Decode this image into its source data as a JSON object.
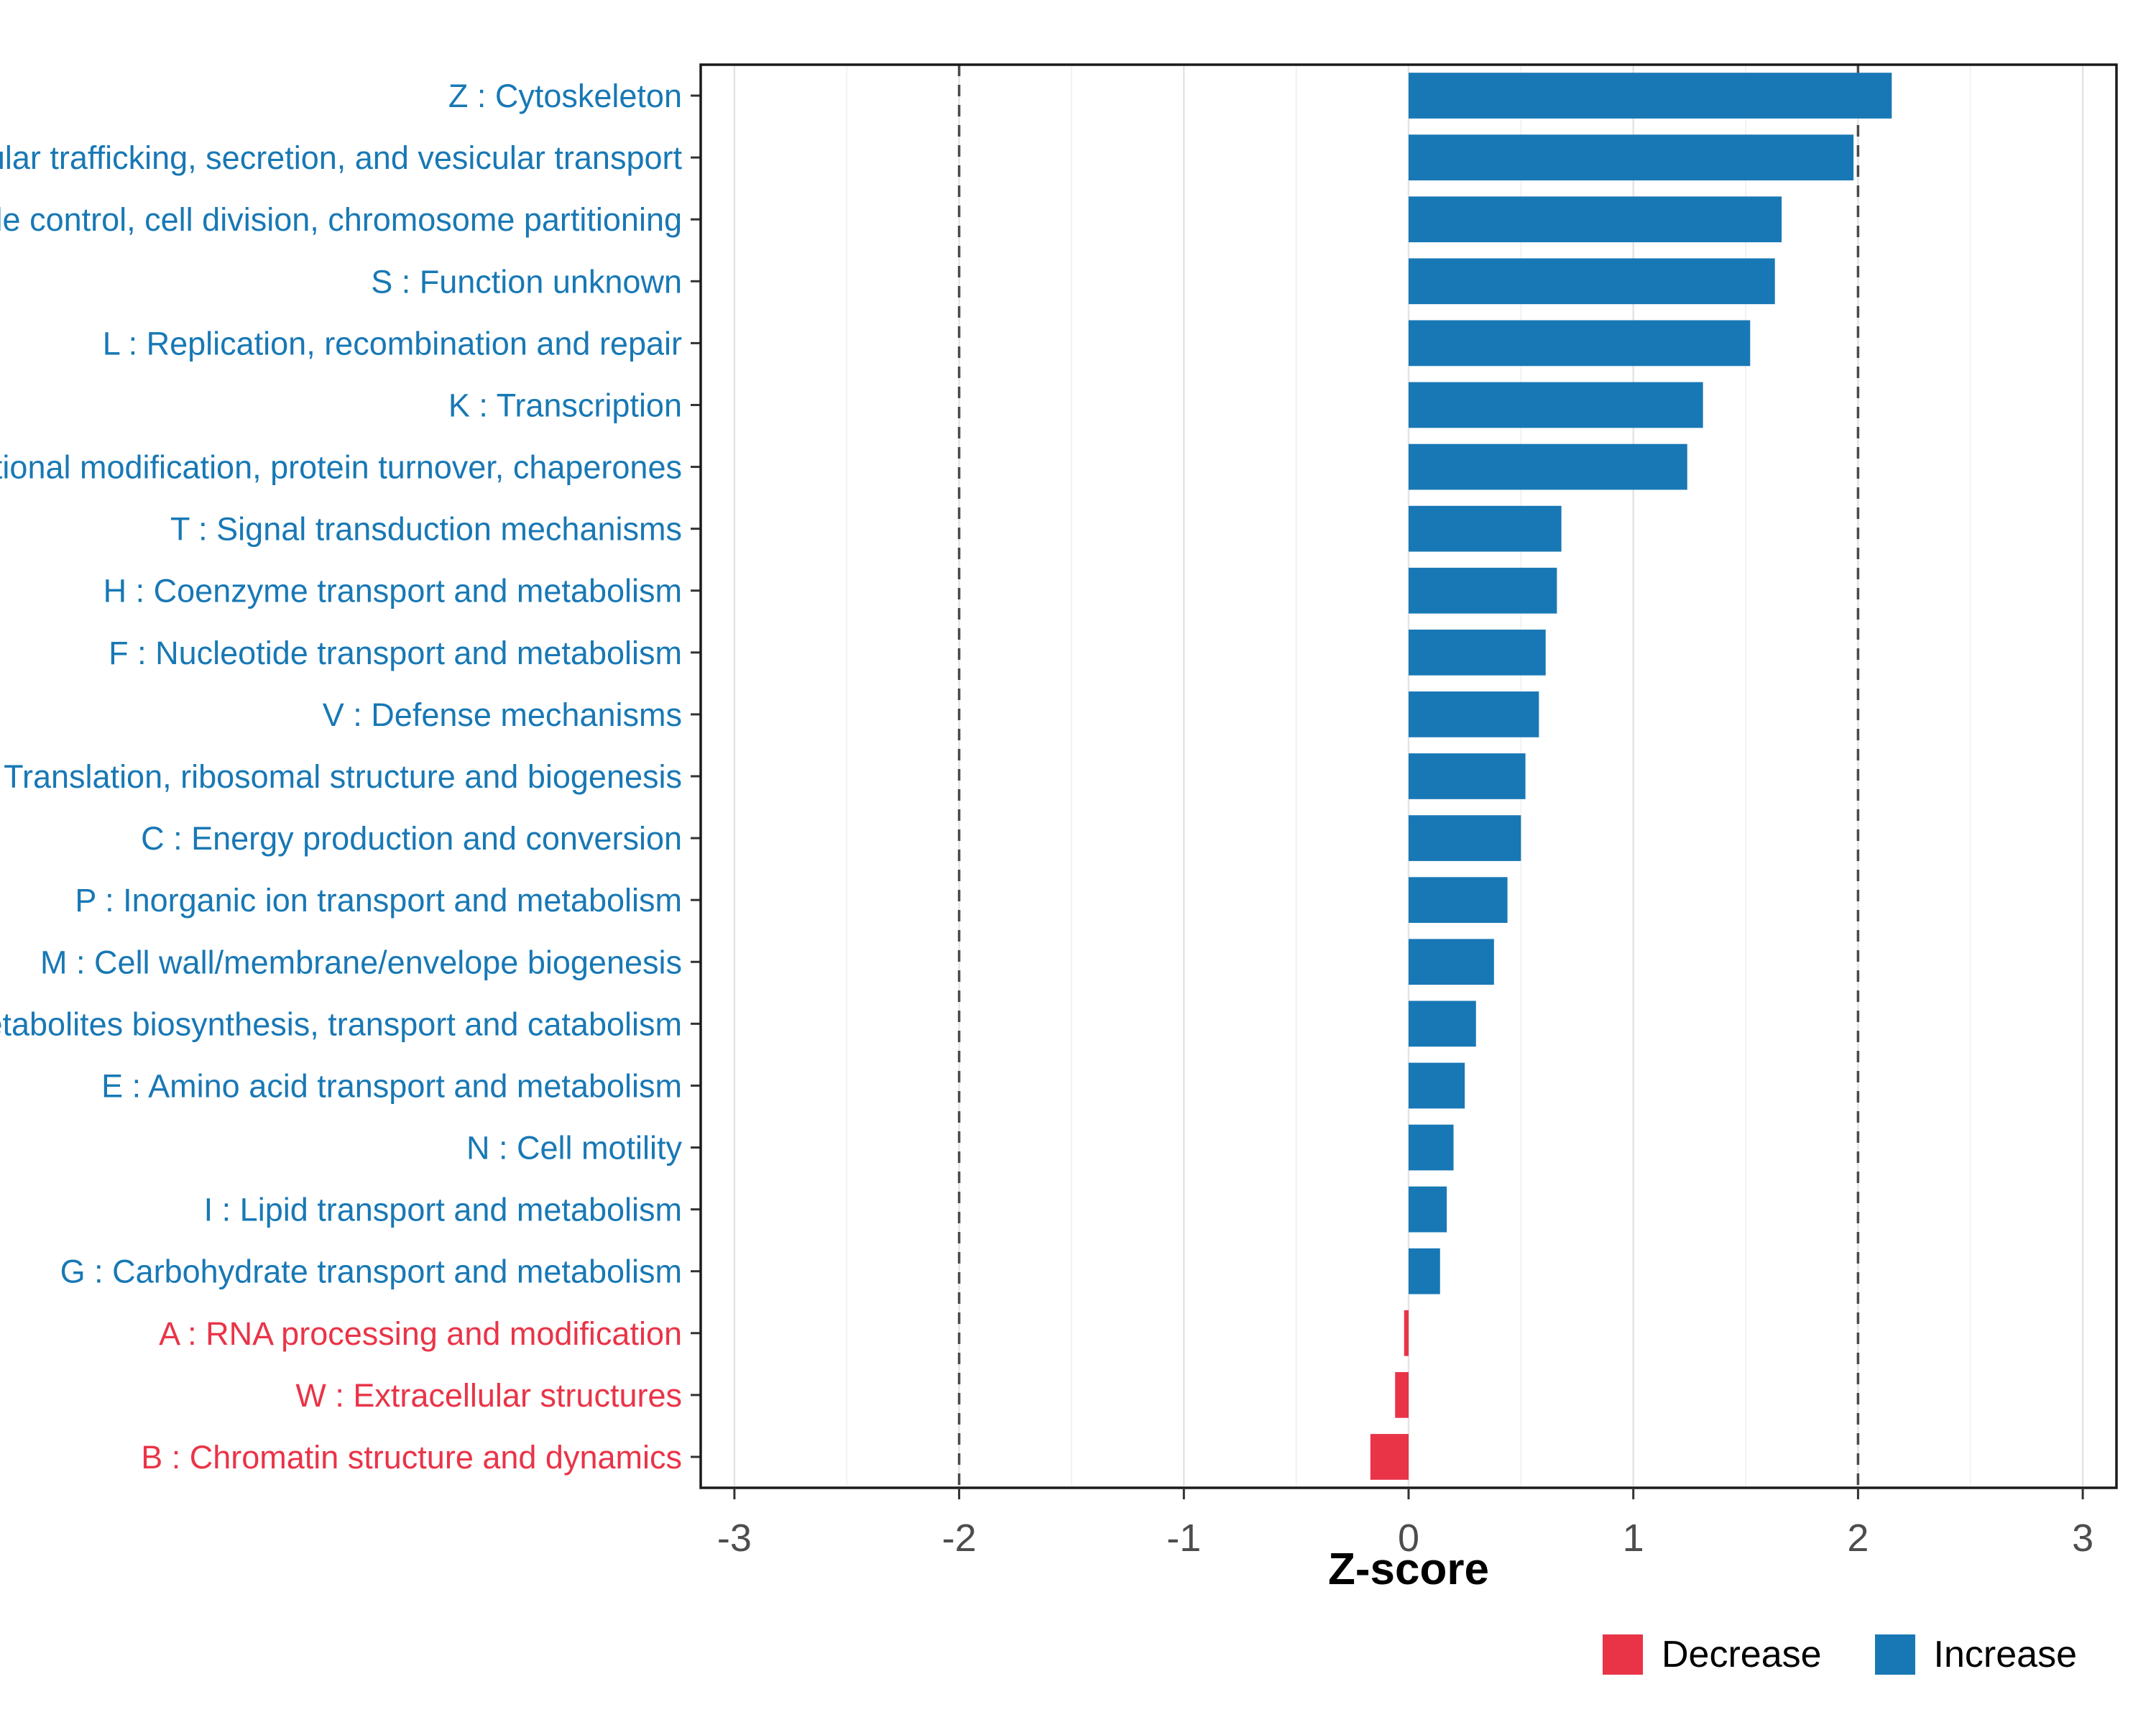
{
  "chart_data": {
    "type": "bar",
    "orientation": "horizontal",
    "title": "",
    "xlabel": "Z-score",
    "xlim": [
      -3.15,
      3.15
    ],
    "x_ticks": [
      -3,
      -2,
      -1,
      0,
      1,
      2,
      3
    ],
    "x_tick_labels": [
      "-3",
      "-2",
      "-1",
      "0",
      "1",
      "2",
      "3"
    ],
    "reference_lines": [
      -2,
      2
    ],
    "grid": true,
    "legend_position": "bottom-right",
    "categories": [
      "Z : Cytoskeleton",
      "U : Intracellular trafficking, secretion, and vesicular transport",
      "D : Cell cycle control, cell division, chromosome partitioning",
      "S : Function unknown",
      "L : Replication, recombination and repair",
      "K : Transcription",
      "O : Posttranslational modification, protein turnover, chaperones",
      "T : Signal transduction mechanisms",
      "H : Coenzyme transport and metabolism",
      "F : Nucleotide transport and metabolism",
      "V : Defense mechanisms",
      "J : Translation, ribosomal structure and biogenesis",
      "C : Energy production and conversion",
      "P : Inorganic ion transport and metabolism",
      "M : Cell wall/membrane/envelope biogenesis",
      "Q : Secondary metabolites biosynthesis, transport and catabolism",
      "E : Amino acid transport and metabolism",
      "N : Cell motility",
      "I : Lipid transport and metabolism",
      "G : Carbohydrate transport and metabolism",
      "A : RNA processing and modification",
      "W : Extracellular structures",
      "B : Chromatin structure and dynamics"
    ],
    "values": [
      2.15,
      1.98,
      1.66,
      1.63,
      1.52,
      1.31,
      1.24,
      0.68,
      0.66,
      0.61,
      0.58,
      0.52,
      0.5,
      0.44,
      0.38,
      0.3,
      0.25,
      0.2,
      0.17,
      0.14,
      -0.02,
      -0.06,
      -0.17
    ],
    "groups": [
      "increase",
      "increase",
      "increase",
      "increase",
      "increase",
      "increase",
      "increase",
      "increase",
      "increase",
      "increase",
      "increase",
      "increase",
      "increase",
      "increase",
      "increase",
      "increase",
      "increase",
      "increase",
      "increase",
      "increase",
      "decrease",
      "decrease",
      "decrease"
    ],
    "colors": {
      "increase": "#1878b5",
      "decrease": "#e93448",
      "reference_line": "#4a4a4a",
      "grid_major": "#e4e4e4",
      "grid_minor": "#f2f2f2",
      "panel_border": "#1a1a1a",
      "tick_label": "#4d4d4d"
    },
    "legend": [
      {
        "label": "Decrease",
        "color": "#e93448"
      },
      {
        "label": "Increase",
        "color": "#1878b5"
      }
    ]
  }
}
